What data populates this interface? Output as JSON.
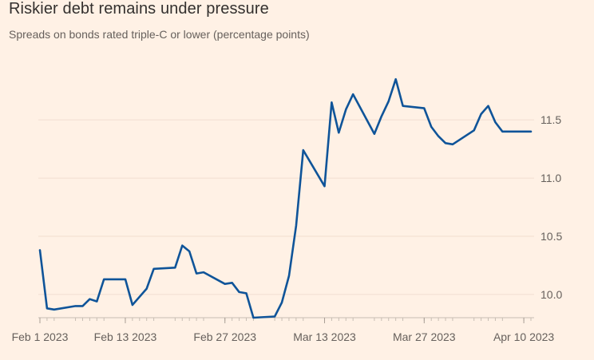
{
  "title": "Riskier debt remains under pressure",
  "subtitle": "Spreads on bonds rated triple-C or lower (percentage points)",
  "chart_data": {
    "type": "line",
    "title": "Riskier debt remains under pressure",
    "subtitle": "Spreads on bonds rated triple-C or lower (percentage points)",
    "xlabel": "",
    "ylabel": "",
    "x_tick_labels": [
      "Feb 1 2023",
      "Feb 13 2023",
      "Feb 27 2023",
      "Mar 13 2023",
      "Mar 27 2023",
      "Apr 10 2023"
    ],
    "y_ticks": [
      10.0,
      10.5,
      11.0,
      11.5
    ],
    "y_tick_labels": [
      "10.0",
      "10.5",
      "11.0",
      "11.5"
    ],
    "ylim": [
      9.8,
      12.05
    ],
    "xlim": [
      "2023-02-01",
      "2023-04-11"
    ],
    "grid": "horizontal",
    "y_axis_position": "right",
    "line_color": "#0f5499",
    "series": [
      {
        "x": [
          "2023-02-01",
          "2023-02-02",
          "2023-02-03",
          "2023-02-06",
          "2023-02-07",
          "2023-02-08",
          "2023-02-09",
          "2023-02-10",
          "2023-02-13",
          "2023-02-14",
          "2023-02-15",
          "2023-02-16",
          "2023-02-17",
          "2023-02-20",
          "2023-02-21",
          "2023-02-22",
          "2023-02-23",
          "2023-02-24",
          "2023-02-27",
          "2023-02-28",
          "2023-03-01",
          "2023-03-02",
          "2023-03-03",
          "2023-03-06",
          "2023-03-07",
          "2023-03-08",
          "2023-03-09",
          "2023-03-10",
          "2023-03-13",
          "2023-03-14",
          "2023-03-15",
          "2023-03-16",
          "2023-03-17",
          "2023-03-20",
          "2023-03-21",
          "2023-03-22",
          "2023-03-23",
          "2023-03-24",
          "2023-03-27",
          "2023-03-28",
          "2023-03-29",
          "2023-03-30",
          "2023-03-31",
          "2023-04-03",
          "2023-04-04",
          "2023-04-05",
          "2023-04-06",
          "2023-04-07",
          "2023-04-10",
          "2023-04-11"
        ],
        "values": [
          10.38,
          9.88,
          9.87,
          9.9,
          9.9,
          9.96,
          9.94,
          10.13,
          10.13,
          9.91,
          9.98,
          10.05,
          10.22,
          10.23,
          10.42,
          10.37,
          10.18,
          10.19,
          10.09,
          10.1,
          10.02,
          10.01,
          9.8,
          9.81,
          9.93,
          10.16,
          10.59,
          11.24,
          10.93,
          11.65,
          11.39,
          11.59,
          11.72,
          11.38,
          11.53,
          11.66,
          11.85,
          11.62,
          11.6,
          11.44,
          11.36,
          11.3,
          11.29,
          11.41,
          11.55,
          11.62,
          11.48,
          11.4,
          11.4,
          11.4
        ]
      }
    ]
  }
}
